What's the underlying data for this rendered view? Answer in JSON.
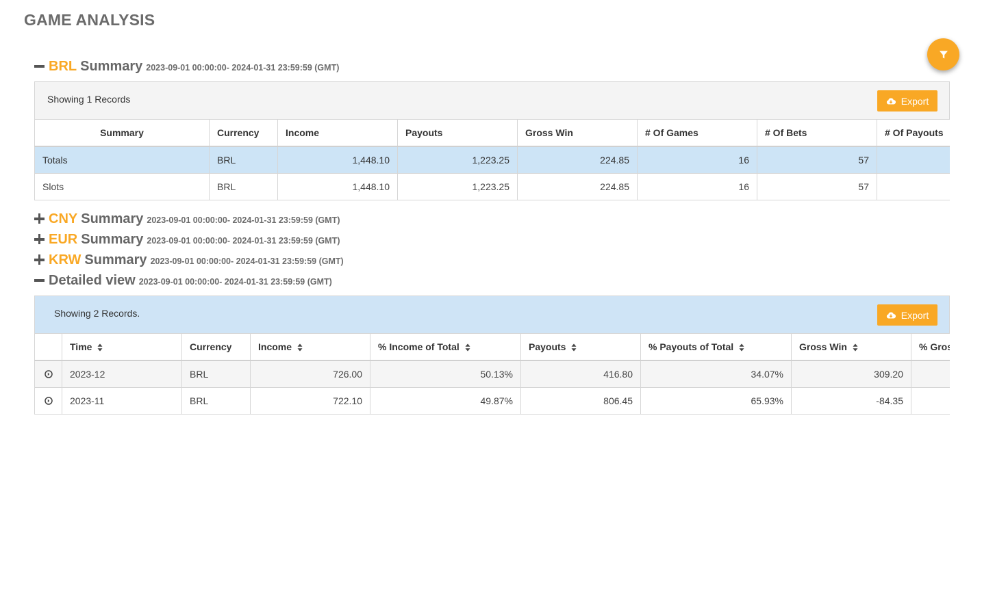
{
  "page_title": "GAME ANALYSIS",
  "colors": {
    "accent": "#f9a825",
    "highlight_row": "#cde4f6",
    "panel_gray": "#f4f4f4"
  },
  "brl": {
    "currency": "BRL",
    "word": "Summary",
    "range": "2023-09-01 00:00:00- 2024-01-31 23:59:59 (GMT)",
    "showing": "Showing 1 Records",
    "export_label": "Export",
    "headers": [
      "Summary",
      "Currency",
      "Income",
      "Payouts",
      "Gross Win",
      "# Of Games",
      "# Of Bets",
      "# Of Payouts"
    ],
    "rows": [
      [
        "Totals",
        "BRL",
        "1,448.10",
        "1,223.25",
        "224.85",
        "16",
        "57",
        ""
      ],
      [
        "Slots",
        "BRL",
        "1,448.10",
        "1,223.25",
        "224.85",
        "16",
        "57",
        ""
      ]
    ]
  },
  "cny": {
    "currency": "CNY",
    "word": "Summary",
    "range": "2023-09-01 00:00:00- 2024-01-31 23:59:59 (GMT)"
  },
  "eur": {
    "currency": "EUR",
    "word": "Summary",
    "range": "2023-09-01 00:00:00- 2024-01-31 23:59:59 (GMT)"
  },
  "krw": {
    "currency": "KRW",
    "word": "Summary",
    "range": "2023-09-01 00:00:00- 2024-01-31 23:59:59 (GMT)"
  },
  "detailed": {
    "title": "Detailed view",
    "range": "2023-09-01 00:00:00- 2024-01-31 23:59:59 (GMT)",
    "showing": "Showing 2 Records.",
    "export_label": "Export",
    "headers": [
      "",
      "Time",
      "Currency",
      "Income",
      "% Income of Total",
      "Payouts",
      "% Payouts of Total",
      "Gross Win",
      "% Gross"
    ],
    "rows": [
      [
        "",
        "2023-12",
        "BRL",
        "726.00",
        "50.13%",
        "416.80",
        "34.07%",
        "309.20",
        ""
      ],
      [
        "",
        "2023-11",
        "BRL",
        "722.10",
        "49.87%",
        "806.45",
        "65.93%",
        "-84.35",
        ""
      ]
    ]
  }
}
